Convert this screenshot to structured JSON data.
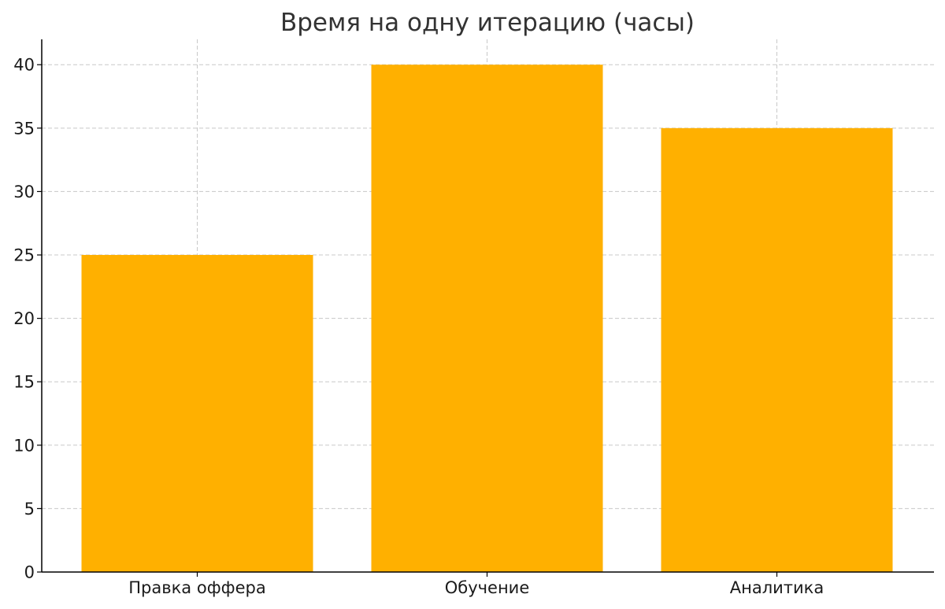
{
  "colors": {
    "bar": "#FFB000",
    "grid": "#c8c8c8",
    "axis": "#000000",
    "title": "#333333"
  },
  "chart_data": {
    "type": "bar",
    "title": "Время на одну итерацию (часы)",
    "xlabel": "",
    "ylabel": "",
    "categories": [
      "Правка оффера",
      "Обучение",
      "Аналитика"
    ],
    "values": [
      25,
      40,
      35
    ],
    "ylim": [
      0,
      42
    ],
    "yticks": [
      0,
      5,
      10,
      15,
      20,
      25,
      30,
      35,
      40
    ],
    "grid": true,
    "legend": "none"
  }
}
